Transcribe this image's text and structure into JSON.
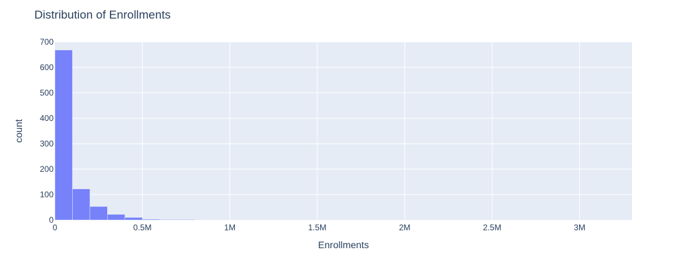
{
  "chart_data": {
    "type": "bar",
    "title": "Distribution of Enrollments",
    "xlabel": "Enrollments",
    "ylabel": "count",
    "bin_width": 100000,
    "bins": [
      {
        "x0": 0,
        "x1": 100000,
        "count": 668
      },
      {
        "x0": 100000,
        "x1": 200000,
        "count": 122
      },
      {
        "x0": 200000,
        "x1": 300000,
        "count": 53
      },
      {
        "x0": 300000,
        "x1": 400000,
        "count": 22
      },
      {
        "x0": 400000,
        "x1": 500000,
        "count": 10
      },
      {
        "x0": 500000,
        "x1": 600000,
        "count": 3
      },
      {
        "x0": 600000,
        "x1": 700000,
        "count": 2
      },
      {
        "x0": 700000,
        "x1": 800000,
        "count": 2
      },
      {
        "x0": 800000,
        "x1": 900000,
        "count": 0
      }
    ],
    "xlim": [
      0,
      3300000
    ],
    "ylim": [
      0,
      700
    ],
    "x_ticks": [
      {
        "value": 0,
        "label": "0"
      },
      {
        "value": 500000,
        "label": "0.5M"
      },
      {
        "value": 1000000,
        "label": "1M"
      },
      {
        "value": 1500000,
        "label": "1.5M"
      },
      {
        "value": 2000000,
        "label": "2M"
      },
      {
        "value": 2500000,
        "label": "2.5M"
      },
      {
        "value": 3000000,
        "label": "3M"
      }
    ],
    "y_ticks": [
      {
        "value": 0,
        "label": "0"
      },
      {
        "value": 100,
        "label": "100"
      },
      {
        "value": 200,
        "label": "200"
      },
      {
        "value": 300,
        "label": "300"
      },
      {
        "value": 400,
        "label": "400"
      },
      {
        "value": 500,
        "label": "500"
      },
      {
        "value": 600,
        "label": "600"
      },
      {
        "value": 700,
        "label": "700"
      }
    ],
    "grid": true,
    "colors": {
      "bar": "#636efa",
      "plot_bg": "#e5ecf6",
      "grid": "#ffffff",
      "text": "#2a3f5f"
    }
  }
}
